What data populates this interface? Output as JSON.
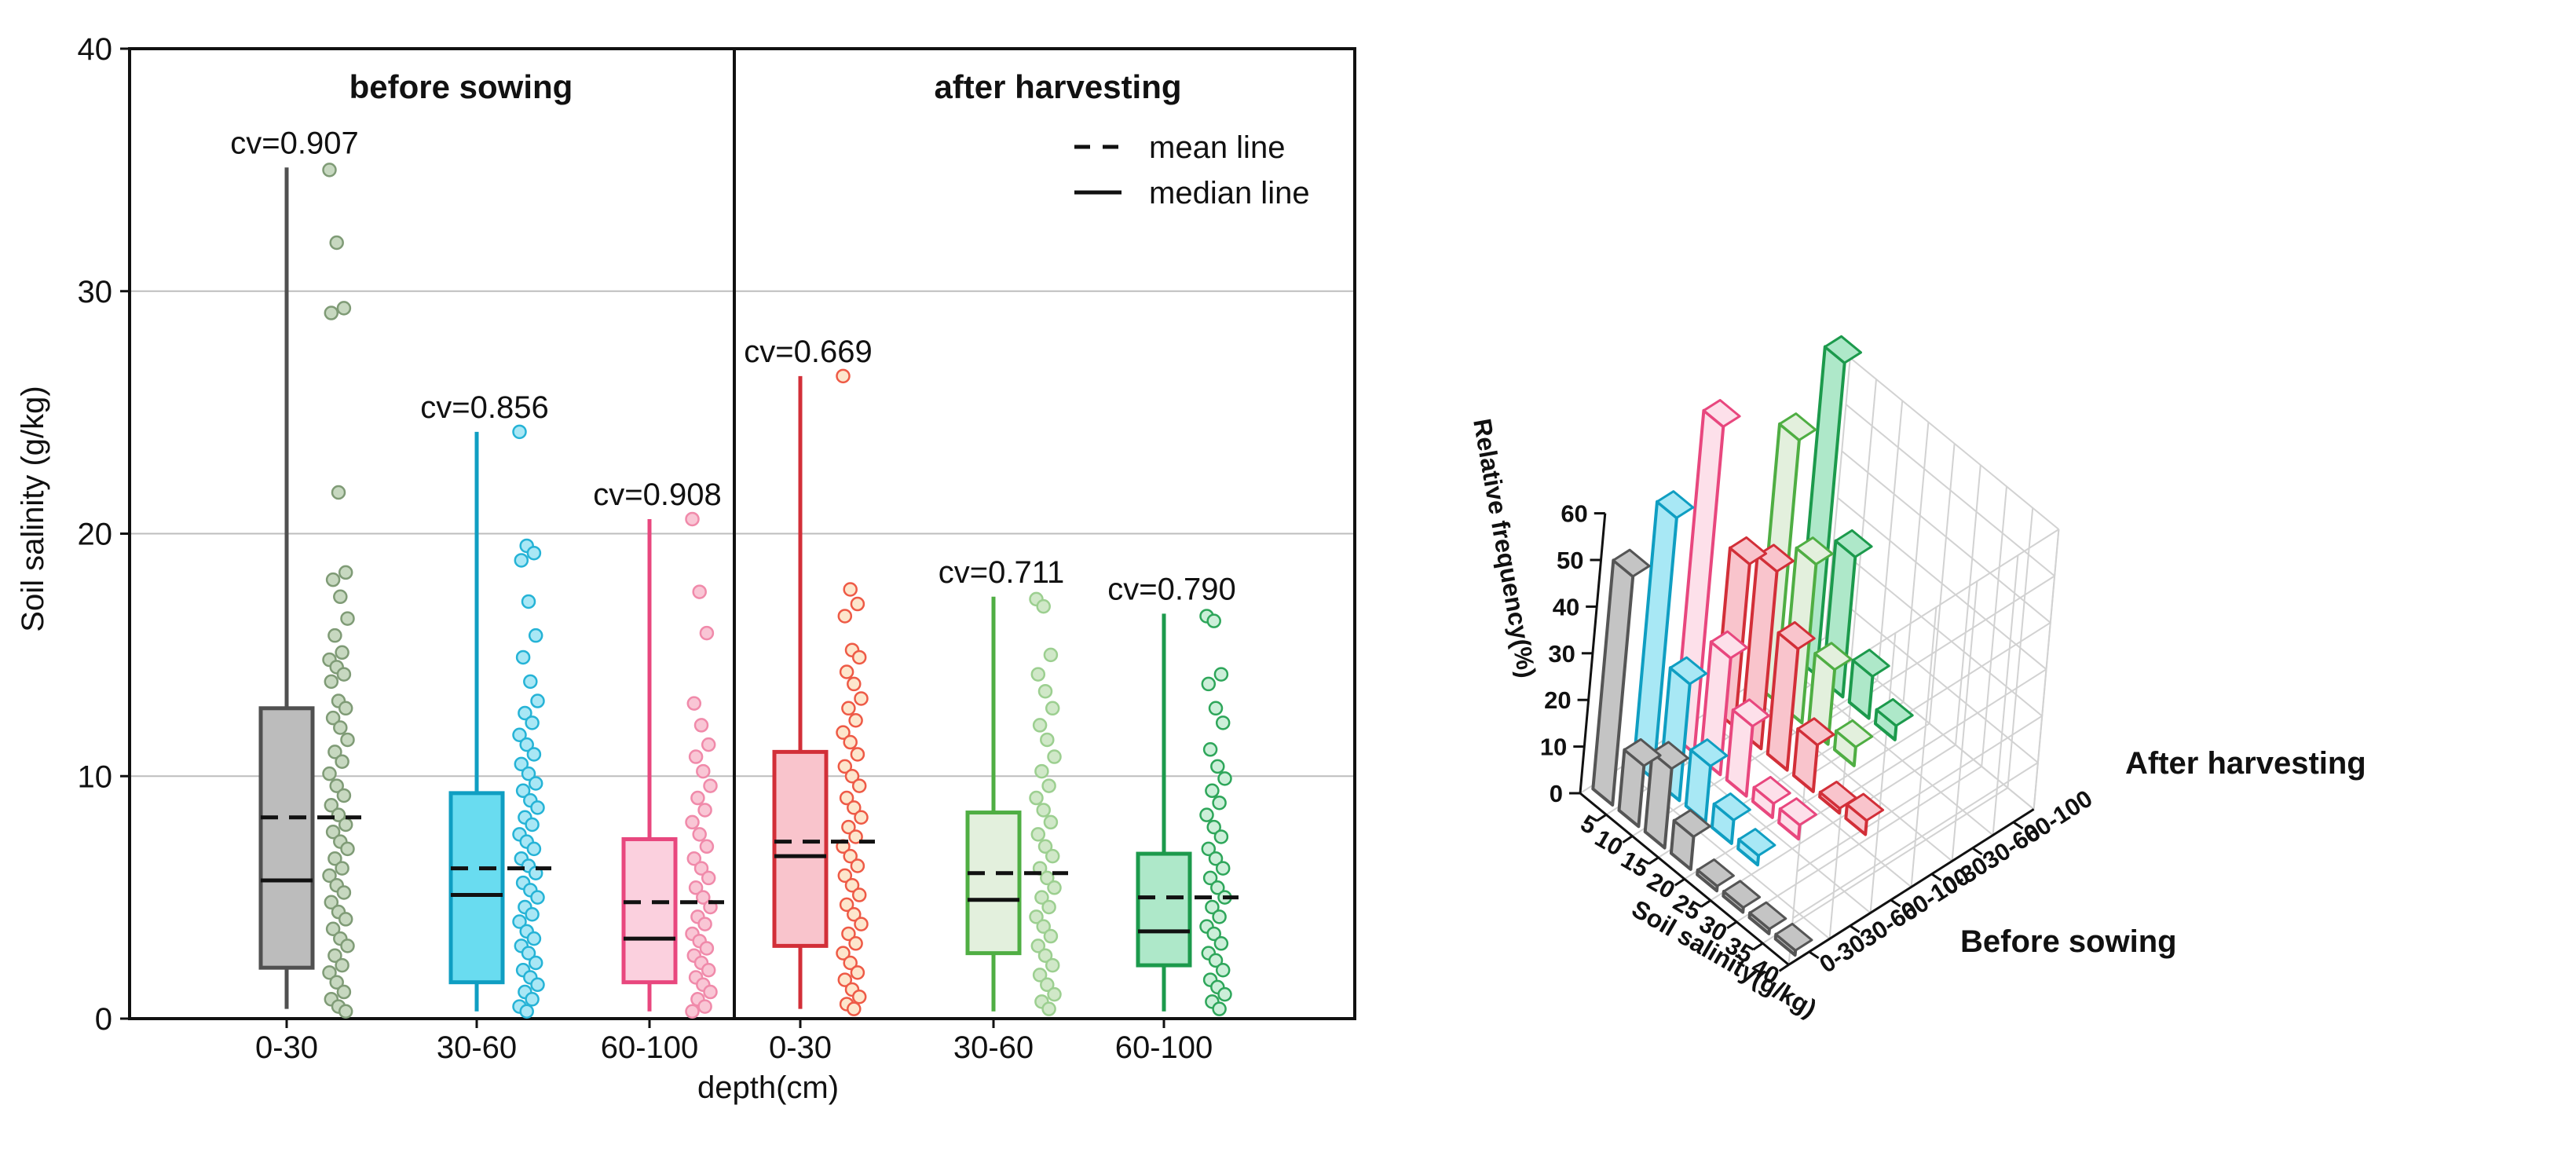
{
  "chart_data": [
    {
      "type": "box",
      "ylabel": "Soil salinity (g/kg)",
      "xlabel": "depth(cm)",
      "ylim": [
        0,
        40
      ],
      "yticks": [
        "0",
        "10",
        "20",
        "30",
        "40"
      ],
      "grid": true,
      "legend": {
        "position": "top-right",
        "mean_label": "mean line",
        "median_label": "median line"
      },
      "panels": [
        {
          "title": "before sowing",
          "groups": [
            {
              "category": "0-30",
              "cv_label": "cv=0.907",
              "color": "#505050",
              "fill": "#bcbcbc",
              "point_fill": "#c7d8c0",
              "point_stroke": "#7f9b76",
              "whisker_low": 0.4,
              "q1": 2.1,
              "median": 5.7,
              "q3": 12.8,
              "whisker_high": 35.1,
              "mean": 8.3,
              "points": [
                35.0,
                32.0,
                29.3,
                29.1,
                21.7,
                18.4,
                18.1,
                17.4,
                16.5,
                15.8,
                15.1,
                14.8,
                14.5,
                14.2,
                13.9,
                13.1,
                12.8,
                12.4,
                12.0,
                11.5,
                11.0,
                10.6,
                10.1,
                9.6,
                9.2,
                8.8,
                8.4,
                8.0,
                7.7,
                7.3,
                7.0,
                6.6,
                6.2,
                5.9,
                5.5,
                5.2,
                4.8,
                4.4,
                4.1,
                3.7,
                3.3,
                3.0,
                2.6,
                2.2,
                1.9,
                1.5,
                1.1,
                0.8,
                0.5,
                0.3
              ]
            },
            {
              "category": "30-60",
              "cv_label": "cv=0.856",
              "color": "#0f9ec2",
              "fill": "#69dcf0",
              "point_fill": "#a9e7f5",
              "point_stroke": "#25b3d6",
              "whisker_low": 0.3,
              "q1": 1.5,
              "median": 5.1,
              "q3": 9.3,
              "whisker_high": 24.2,
              "mean": 6.2,
              "points": [
                24.2,
                19.5,
                19.2,
                18.9,
                17.2,
                15.8,
                14.9,
                13.9,
                13.1,
                12.6,
                12.2,
                11.7,
                11.3,
                10.9,
                10.5,
                10.1,
                9.7,
                9.4,
                9.0,
                8.7,
                8.3,
                8.0,
                7.6,
                7.3,
                7.0,
                6.6,
                6.3,
                6.0,
                5.6,
                5.3,
                5.0,
                4.6,
                4.3,
                4.0,
                3.6,
                3.3,
                3.0,
                2.7,
                2.3,
                2.0,
                1.7,
                1.4,
                1.1,
                0.8,
                0.5,
                0.3
              ]
            },
            {
              "category": "60-100",
              "cv_label": "cv=0.908",
              "color": "#e8477e",
              "fill": "#fbd0de",
              "point_fill": "#f9c6d5",
              "point_stroke": "#f08aaa",
              "whisker_low": 0.3,
              "q1": 1.5,
              "median": 3.3,
              "q3": 7.4,
              "whisker_high": 20.6,
              "mean": 4.8,
              "points": [
                20.6,
                17.6,
                15.9,
                13.0,
                12.1,
                11.3,
                10.8,
                10.2,
                9.6,
                9.1,
                8.6,
                8.1,
                7.6,
                7.1,
                6.6,
                6.2,
                5.8,
                5.4,
                5.0,
                4.6,
                4.2,
                3.9,
                3.5,
                3.2,
                2.9,
                2.6,
                2.3,
                2.0,
                1.7,
                1.4,
                1.1,
                0.8,
                0.5,
                0.3
              ]
            }
          ]
        },
        {
          "title": "after harvesting",
          "groups": [
            {
              "category": "0-30",
              "cv_label": "cv=0.669",
              "color": "#d22f38",
              "fill": "#f9c4cc",
              "point_fill": "#fde6cc",
              "point_stroke": "#ee5a46",
              "whisker_low": 0.4,
              "q1": 3.0,
              "median": 6.7,
              "q3": 11.0,
              "whisker_high": 26.5,
              "mean": 7.3,
              "points": [
                26.5,
                17.7,
                17.1,
                16.6,
                15.2,
                14.9,
                14.3,
                13.8,
                13.2,
                12.8,
                12.3,
                11.8,
                11.4,
                10.9,
                10.4,
                10.0,
                9.6,
                9.1,
                8.7,
                8.3,
                7.9,
                7.5,
                7.1,
                6.7,
                6.3,
                5.9,
                5.5,
                5.1,
                4.7,
                4.3,
                3.9,
                3.5,
                3.1,
                2.7,
                2.3,
                1.9,
                1.6,
                1.2,
                0.9,
                0.6,
                0.4
              ]
            },
            {
              "category": "30-60",
              "cv_label": "cv=0.711",
              "color": "#4fae43",
              "fill": "#e3f0dd",
              "point_fill": "#d0e8c8",
              "point_stroke": "#9ccf90",
              "whisker_low": 0.3,
              "q1": 2.7,
              "median": 4.9,
              "q3": 8.5,
              "whisker_high": 17.4,
              "mean": 6.0,
              "points": [
                17.3,
                17.0,
                15.0,
                14.2,
                13.5,
                12.8,
                12.1,
                11.5,
                10.8,
                10.2,
                9.6,
                9.1,
                8.6,
                8.1,
                7.6,
                7.1,
                6.7,
                6.2,
                5.8,
                5.4,
                5.0,
                4.6,
                4.2,
                3.8,
                3.4,
                3.0,
                2.6,
                2.2,
                1.8,
                1.4,
                1.0,
                0.7,
                0.4
              ]
            },
            {
              "category": "60-100",
              "cv_label": "cv=0.790",
              "color": "#1c9a4c",
              "fill": "#aee8c9",
              "point_fill": "#ccefd9",
              "point_stroke": "#2ea65a",
              "whisker_low": 0.3,
              "q1": 2.2,
              "median": 3.6,
              "q3": 6.8,
              "whisker_high": 16.7,
              "mean": 5.0,
              "points": [
                16.6,
                16.4,
                14.2,
                13.8,
                12.8,
                12.2,
                11.1,
                10.4,
                9.9,
                9.4,
                8.9,
                8.4,
                7.9,
                7.5,
                7.0,
                6.6,
                6.2,
                5.8,
                5.4,
                5.0,
                4.6,
                4.2,
                3.8,
                3.5,
                3.1,
                2.7,
                2.4,
                2.0,
                1.6,
                1.3,
                1.0,
                0.7,
                0.4
              ]
            }
          ]
        }
      ]
    },
    {
      "type": "bar3d",
      "zlabel": "Relative frequency(%)",
      "xlabel": "Soil salinity(g/kg)",
      "zlim": [
        0,
        60
      ],
      "zticks": [
        "0",
        "10",
        "20",
        "30",
        "40",
        "50",
        "60"
      ],
      "xticks": [
        "5",
        "10",
        "15",
        "20",
        "25",
        "30",
        "35",
        "40"
      ],
      "yticks": [
        "0-30",
        "30-60",
        "60-100",
        "0-30",
        "30-60",
        "60-100"
      ],
      "annotations": [
        "Before sowing",
        "After harvesting"
      ],
      "series": [
        {
          "name": "Before sowing 0-30",
          "color": "#555555",
          "fill": "#c4c4c4",
          "values": [
            49,
            13,
            17,
            7,
            1,
            1,
            1,
            1
          ]
        },
        {
          "name": "Before sowing 30-60",
          "color": "#0f9ec2",
          "fill": "#a8e8f5",
          "values": [
            56,
            25,
            12,
            5,
            2,
            0,
            0,
            0
          ]
        },
        {
          "name": "Before sowing 60-100",
          "color": "#e8477e",
          "fill": "#fde0ea",
          "values": [
            70,
            25,
            15,
            3,
            3,
            0,
            0,
            0
          ]
        },
        {
          "name": "After harvesting 0-30",
          "color": "#d22f38",
          "fill": "#f9c4cc",
          "values": [
            35,
            38,
            26,
            10,
            1,
            3,
            0,
            0
          ]
        },
        {
          "name": "After harvesting 30-60",
          "color": "#4fae43",
          "fill": "#e3f0dd",
          "values": [
            56,
            34,
            16,
            4,
            0,
            0,
            0,
            0
          ]
        },
        {
          "name": "After harvesting 60-100",
          "color": "#1c9a4c",
          "fill": "#aee8c9",
          "values": [
            67,
            30,
            9,
            3,
            0,
            0,
            0,
            0
          ]
        }
      ]
    }
  ]
}
